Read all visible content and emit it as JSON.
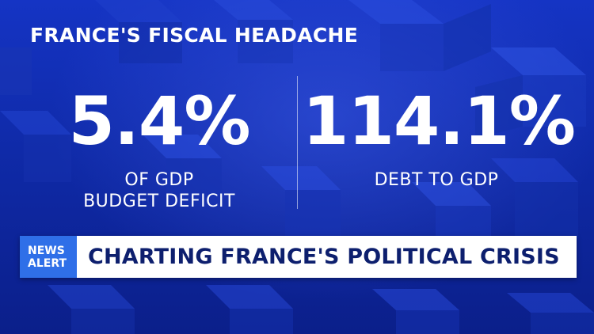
{
  "headline": "FRANCE'S FISCAL HEADACHE",
  "stats": [
    {
      "value": "5.4%",
      "label_line1": "OF GDP",
      "label_line2": "BUDGET DEFICIT"
    },
    {
      "value": "114.1%",
      "label_line1": "DEBT TO GDP"
    }
  ],
  "ticker": {
    "badge_line1": "NEWS",
    "badge_line2": "ALERT",
    "text": "CHARTING FRANCE'S POLITICAL CRISIS"
  },
  "colors": {
    "background": "#0f2aa8",
    "badge": "#2f6fe8",
    "ticker_background": "#ffffff",
    "ticker_text": "#0d1f6e",
    "text": "#ffffff"
  }
}
